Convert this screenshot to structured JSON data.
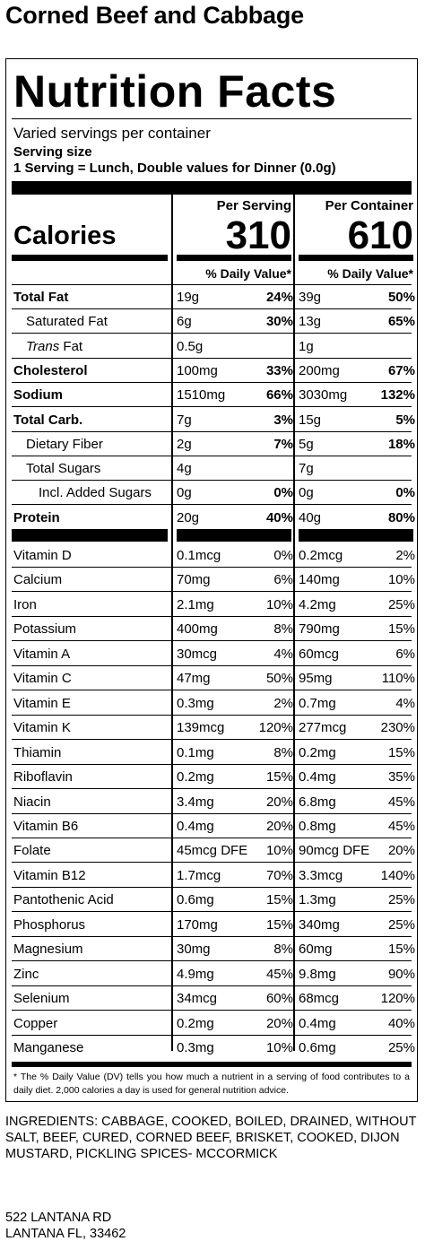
{
  "title": "Corned Beef and Cabbage",
  "label": {
    "heading": "Nutrition Facts",
    "servings_per_container": "Varied servings per container",
    "serving_size_label": "Serving size",
    "serving_desc": "1 Serving = Lunch, Double values for Dinner (0.0g)",
    "per_serving": "Per Serving",
    "per_container": "Per Container",
    "calories_label": "Calories",
    "calories_serving": "310",
    "calories_container": "610",
    "dv_header": "% Daily Value*",
    "footnote": "* The % Daily Value (DV) tells you how much a nutrient in a serving of food contributes to a daily diet. 2,000 calories a day is used for general nutrition advice."
  },
  "nutrients": [
    {
      "name": "Total Fat",
      "bold": true,
      "indent": 0,
      "s_amt": "19g",
      "s_pct": "24%",
      "c_amt": "39g",
      "c_pct": "50%"
    },
    {
      "name": "Saturated Fat",
      "bold": false,
      "indent": 1,
      "s_amt": "6g",
      "s_pct": "30%",
      "c_amt": "13g",
      "c_pct": "65%"
    },
    {
      "name": "Trans Fat",
      "bold": false,
      "indent": 1,
      "italic_prefix": "Trans",
      "s_amt": "0.5g",
      "s_pct": "",
      "c_amt": "1g",
      "c_pct": ""
    },
    {
      "name": "Cholesterol",
      "bold": true,
      "indent": 0,
      "s_amt": "100mg",
      "s_pct": "33%",
      "c_amt": "200mg",
      "c_pct": "67%"
    },
    {
      "name": "Sodium",
      "bold": true,
      "indent": 0,
      "s_amt": "1510mg",
      "s_pct": "66%",
      "c_amt": "3030mg",
      "c_pct": "132%"
    },
    {
      "name": "Total Carb.",
      "bold": true,
      "indent": 0,
      "s_amt": "7g",
      "s_pct": "3%",
      "c_amt": "15g",
      "c_pct": "5%"
    },
    {
      "name": "Dietary Fiber",
      "bold": false,
      "indent": 1,
      "s_amt": "2g",
      "s_pct": "7%",
      "c_amt": "5g",
      "c_pct": "18%"
    },
    {
      "name": "Total Sugars",
      "bold": false,
      "indent": 1,
      "s_amt": "4g",
      "s_pct": "",
      "c_amt": "7g",
      "c_pct": ""
    },
    {
      "name": "Incl. Added Sugars",
      "bold": false,
      "indent": 2,
      "s_amt": "0g",
      "s_pct": "0%",
      "c_amt": "0g",
      "c_pct": "0%"
    },
    {
      "name": "Protein",
      "bold": true,
      "indent": 0,
      "s_amt": "20g",
      "s_pct": "40%",
      "c_amt": "40g",
      "c_pct": "80%"
    }
  ],
  "vitamins": [
    {
      "name": "Vitamin D",
      "s_amt": "0.1mcg",
      "s_pct": "0%",
      "c_amt": "0.2mcg",
      "c_pct": "2%"
    },
    {
      "name": "Calcium",
      "s_amt": "70mg",
      "s_pct": "6%",
      "c_amt": "140mg",
      "c_pct": "10%"
    },
    {
      "name": "Iron",
      "s_amt": "2.1mg",
      "s_pct": "10%",
      "c_amt": "4.2mg",
      "c_pct": "25%"
    },
    {
      "name": "Potassium",
      "s_amt": "400mg",
      "s_pct": "8%",
      "c_amt": "790mg",
      "c_pct": "15%"
    },
    {
      "name": "Vitamin A",
      "s_amt": "30mcg",
      "s_pct": "4%",
      "c_amt": "60mcg",
      "c_pct": "6%"
    },
    {
      "name": "Vitamin C",
      "s_amt": "47mg",
      "s_pct": "50%",
      "c_amt": "95mg",
      "c_pct": "110%"
    },
    {
      "name": "Vitamin E",
      "s_amt": "0.3mg",
      "s_pct": "2%",
      "c_amt": "0.7mg",
      "c_pct": "4%"
    },
    {
      "name": "Vitamin K",
      "s_amt": "139mcg",
      "s_pct": "120%",
      "c_amt": "277mcg",
      "c_pct": "230%"
    },
    {
      "name": "Thiamin",
      "s_amt": "0.1mg",
      "s_pct": "8%",
      "c_amt": "0.2mg",
      "c_pct": "15%"
    },
    {
      "name": "Riboflavin",
      "s_amt": "0.2mg",
      "s_pct": "15%",
      "c_amt": "0.4mg",
      "c_pct": "35%"
    },
    {
      "name": "Niacin",
      "s_amt": "3.4mg",
      "s_pct": "20%",
      "c_amt": "6.8mg",
      "c_pct": "45%"
    },
    {
      "name": "Vitamin B6",
      "s_amt": "0.4mg",
      "s_pct": "20%",
      "c_amt": "0.8mg",
      "c_pct": "45%"
    },
    {
      "name": "Folate",
      "s_amt": "45mcg DFE",
      "s_pct": "10%",
      "c_amt": "90mcg DFE",
      "c_pct": "20%"
    },
    {
      "name": "Vitamin B12",
      "s_amt": "1.7mcg",
      "s_pct": "70%",
      "c_amt": "3.3mcg",
      "c_pct": "140%"
    },
    {
      "name": "Pantothenic Acid",
      "s_amt": "0.6mg",
      "s_pct": "15%",
      "c_amt": "1.3mg",
      "c_pct": "25%"
    },
    {
      "name": "Phosphorus",
      "s_amt": "170mg",
      "s_pct": "15%",
      "c_amt": "340mg",
      "c_pct": "25%"
    },
    {
      "name": "Magnesium",
      "s_amt": "30mg",
      "s_pct": "8%",
      "c_amt": "60mg",
      "c_pct": "15%"
    },
    {
      "name": "Zinc",
      "s_amt": "4.9mg",
      "s_pct": "45%",
      "c_amt": "9.8mg",
      "c_pct": "90%"
    },
    {
      "name": "Selenium",
      "s_amt": "34mcg",
      "s_pct": "60%",
      "c_amt": "68mcg",
      "c_pct": "120%"
    },
    {
      "name": "Copper",
      "s_amt": "0.2mg",
      "s_pct": "20%",
      "c_amt": "0.4mg",
      "c_pct": "40%"
    },
    {
      "name": "Manganese",
      "s_amt": "0.3mg",
      "s_pct": "10%",
      "c_amt": "0.6mg",
      "c_pct": "25%"
    }
  ],
  "ingredients": "INGREDIENTS: CABBAGE, COOKED, BOILED, DRAINED, WITHOUT SALT, BEEF, CURED, CORNED BEEF, BRISKET, COOKED, DIJON MUSTARD, PICKLING SPICES- MCCORMICK",
  "address": {
    "line1": "522 LANTANA RD",
    "line2": "LANTANA FL, 33462"
  }
}
